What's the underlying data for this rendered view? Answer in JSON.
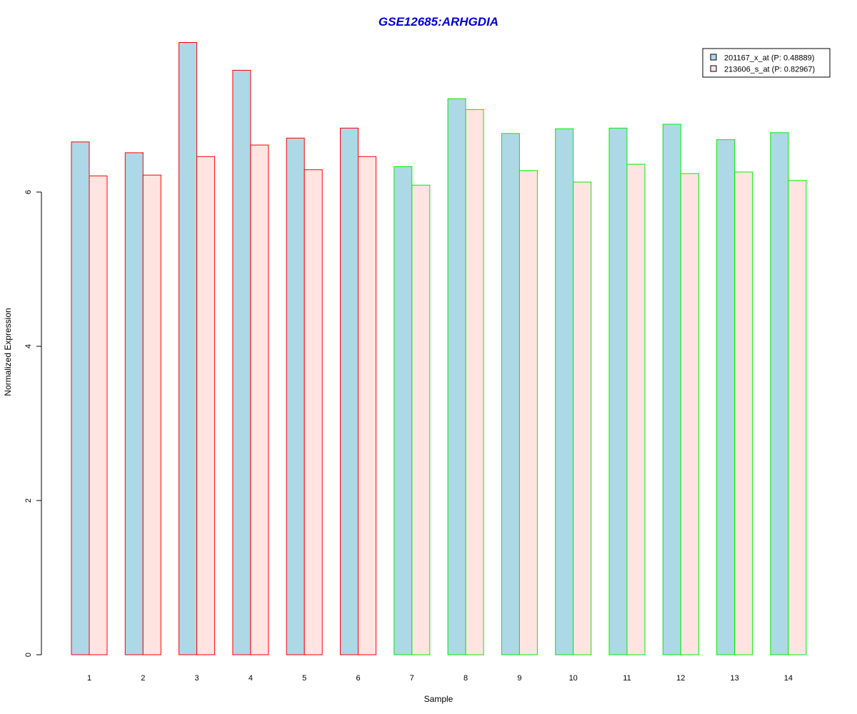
{
  "chart_data": {
    "type": "bar",
    "title": "GSE12685:ARHGDIA",
    "xlabel": "Sample",
    "ylabel": "Normalized Expression",
    "categories": [
      "1",
      "2",
      "3",
      "4",
      "5",
      "6",
      "7",
      "8",
      "9",
      "10",
      "11",
      "12",
      "13",
      "14"
    ],
    "yticks": [
      "0",
      "2",
      "4",
      "6"
    ],
    "ylim": [
      0,
      8
    ],
    "series": [
      {
        "name": "201167_x_at (P: 0.48889)",
        "fill": "#add8e6",
        "values": [
          6.65,
          6.51,
          7.94,
          7.58,
          6.7,
          6.83,
          6.33,
          7.21,
          6.76,
          6.82,
          6.83,
          6.88,
          6.68,
          6.77
        ]
      },
      {
        "name": "213606_s_at (P: 0.82967)",
        "fill": "#ffe4e1",
        "values": [
          6.21,
          6.22,
          6.46,
          6.61,
          6.29,
          6.46,
          6.09,
          7.07,
          6.28,
          6.13,
          6.36,
          6.24,
          6.26,
          6.15
        ]
      }
    ],
    "group_border_colors": [
      "#ff0000",
      "#ff0000",
      "#ff0000",
      "#ff0000",
      "#ff0000",
      "#ff0000",
      "#00ee00",
      "#00ee00",
      "#00ee00",
      "#00ee00",
      "#00ee00",
      "#00ee00",
      "#00ee00",
      "#00ee00"
    ],
    "title_color": "#0000cd",
    "grid": false,
    "legend_position": "top-right"
  }
}
